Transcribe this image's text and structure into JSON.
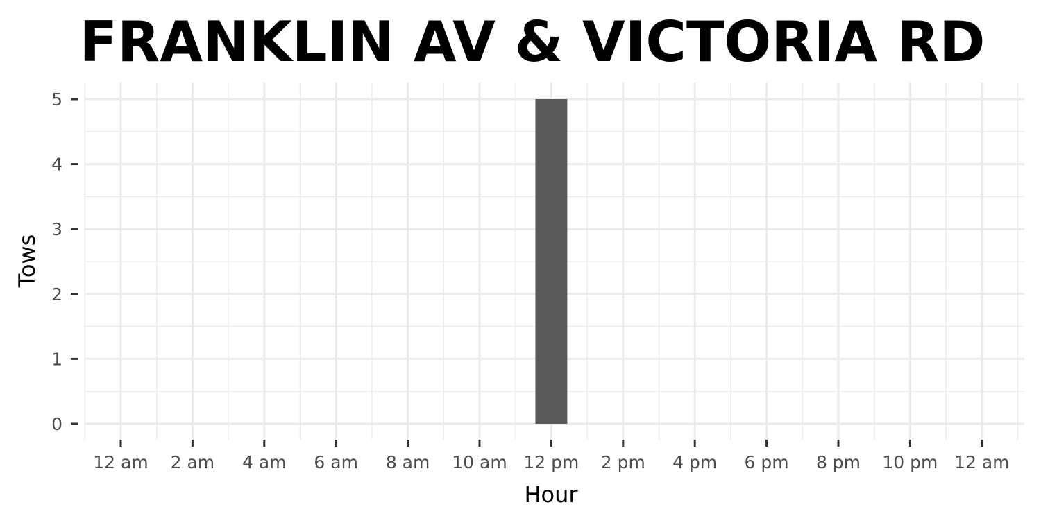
{
  "chart_data": {
    "type": "bar",
    "title": "FRANKLIN AV & VICTORIA RD",
    "xlabel": "Hour",
    "ylabel": "Tows",
    "x_ticks": [
      "12 am",
      "2 am",
      "4 am",
      "6 am",
      "8 am",
      "10 am",
      "12 pm",
      "2 pm",
      "4 pm",
      "6 pm",
      "8 pm",
      "10 pm",
      "12 am"
    ],
    "y_ticks": [
      "0",
      "1",
      "2",
      "3",
      "4",
      "5"
    ],
    "xlim": [
      0,
      24
    ],
    "ylim": [
      0,
      5
    ],
    "grid": true,
    "bars": [
      {
        "hour": 12,
        "value": 5
      }
    ],
    "colors": {
      "bar": "#595959",
      "grid": "#ebebeb",
      "tick": "#333333"
    }
  }
}
